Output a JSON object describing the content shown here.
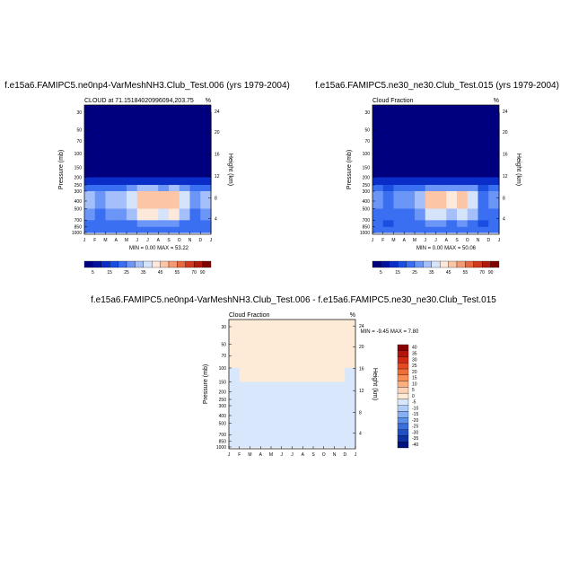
{
  "chart_data": [
    {
      "type": "heatmap",
      "title": "f.e15a6.FAMIPC5.ne0np4-VarMeshNH3.Club_Test.006 (yrs 1979-2004)",
      "subtitle_left": "CLOUD at 71.15184020996094,203.75",
      "subtitle_right": "%",
      "ylabel_left": "Pressure (mb)",
      "ylabel_right": "Height (km)",
      "x_ticks": [
        "J",
        "F",
        "M",
        "A",
        "M",
        "J",
        "J",
        "A",
        "S",
        "O",
        "N",
        "D",
        "J"
      ],
      "y_ticks_left": [
        "30",
        "50",
        "70",
        "100",
        "150",
        "200",
        "250",
        "300",
        "400",
        "500",
        "700",
        "850",
        "1000"
      ],
      "y_ticks_right": [
        "24",
        "20",
        "16",
        "12",
        "8",
        "4"
      ],
      "stats": "MIN =   0.00 MAX =  53.22",
      "min": 0.0,
      "max": 53.22,
      "colorbar_labels": [
        "5",
        "15",
        "25",
        "35",
        "45",
        "55",
        "70",
        "90"
      ],
      "colorbar_colors": [
        "#00007f",
        "#00129e",
        "#0a2dc7",
        "#1a4ee0",
        "#3a6ff2",
        "#6b95f7",
        "#a4bff9",
        "#d6e4fb",
        "#fce9dc",
        "#fcc6a6",
        "#f59a72",
        "#e8683f",
        "#d1391e",
        "#b01a0d",
        "#800000"
      ]
    },
    {
      "type": "heatmap",
      "title": "f.e15a6.FAMIPC5.ne30_ne30.Club_Test.015 (yrs 1979-2004)",
      "subtitle_left": "Cloud Fraction",
      "subtitle_right": "%",
      "ylabel_left": "Pressure (mb)",
      "ylabel_right": "Height (km)",
      "x_ticks": [
        "J",
        "F",
        "M",
        "A",
        "M",
        "J",
        "J",
        "A",
        "S",
        "O",
        "N",
        "D",
        "J"
      ],
      "y_ticks_left": [
        "30",
        "50",
        "70",
        "100",
        "150",
        "200",
        "250",
        "300",
        "400",
        "500",
        "700",
        "850",
        "1000"
      ],
      "y_ticks_right": [
        "24",
        "20",
        "16",
        "12",
        "8",
        "4"
      ],
      "stats": "MIN =   0.00 MAX =  50.06",
      "min": 0.0,
      "max": 50.06,
      "colorbar_labels": [
        "5",
        "15",
        "25",
        "35",
        "45",
        "55",
        "70",
        "90"
      ],
      "colorbar_colors": [
        "#00007f",
        "#00129e",
        "#0a2dc7",
        "#1a4ee0",
        "#3a6ff2",
        "#6b95f7",
        "#a4bff9",
        "#d6e4fb",
        "#fce9dc",
        "#fcc6a6",
        "#f59a72",
        "#e8683f",
        "#d1391e",
        "#b01a0d",
        "#800000"
      ]
    },
    {
      "type": "heatmap",
      "title": "f.e15a6.FAMIPC5.ne0np4-VarMeshNH3.Club_Test.006 - f.e15a6.FAMIPC5.ne30_ne30.Club_Test.015",
      "subtitle_left": "Cloud Fraction",
      "subtitle_right": "%",
      "ylabel_left": "Pressure (mb)",
      "ylabel_right": "Height (km)",
      "x_ticks": [
        "J",
        "F",
        "M",
        "A",
        "M",
        "J",
        "J",
        "A",
        "S",
        "O",
        "N",
        "D",
        "J"
      ],
      "y_ticks_left": [
        "30",
        "50",
        "70",
        "100",
        "150",
        "200",
        "250",
        "300",
        "400",
        "500",
        "700",
        "850",
        "1000"
      ],
      "y_ticks_right": [
        "24",
        "20",
        "16",
        "12",
        "8",
        "4"
      ],
      "stats": "MIN =  -9.45 MAX =   7.80",
      "min": -9.45,
      "max": 7.8,
      "colorbar_labels": [
        "40",
        "35",
        "30",
        "25",
        "20",
        "15",
        "10",
        "5",
        "0",
        "-5",
        "-10",
        "-15",
        "-20",
        "-25",
        "-30",
        "-35",
        "-40"
      ],
      "colorbar_colors": [
        "#8b0000",
        "#b4140c",
        "#d02a14",
        "#e64a21",
        "#f26c35",
        "#f88e55",
        "#fcae7d",
        "#fcd3b6",
        "#fdebd8",
        "#d8e7fc",
        "#b0cdf8",
        "#86b0f2",
        "#5d90ea",
        "#3a70db",
        "#2050c4",
        "#0c32a4",
        "#00147e"
      ]
    }
  ]
}
